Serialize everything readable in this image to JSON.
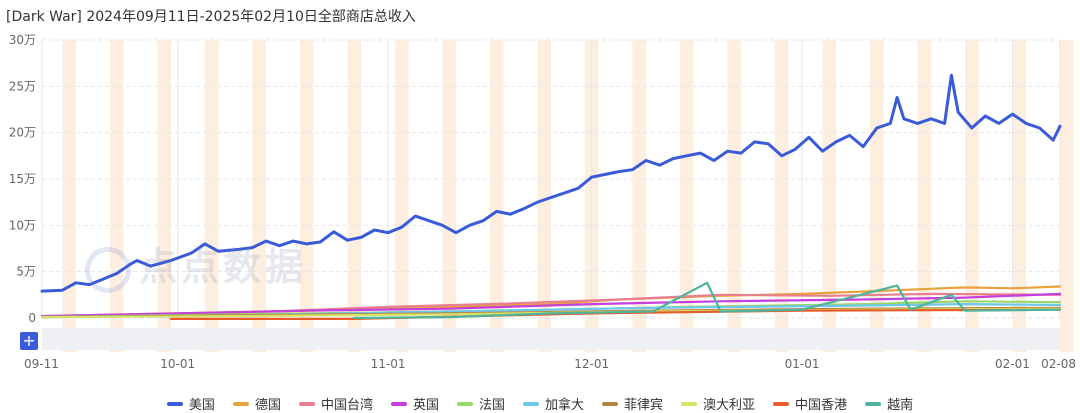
{
  "title": "[Dark War] 2024年09月11日-2025年02月10日全部商店总收入",
  "watermark": "点点数据",
  "zoom_button": "+",
  "colors": {
    "shade": "#fdeee0",
    "grid": "#e6e6e6",
    "slider_bg": "#eef0f4",
    "zoom": "#3b5bdb"
  },
  "chart_data": {
    "type": "line",
    "title": "[Dark War] 2024年09月11日-2025年02月10日全部商店总收入",
    "xlabel": "",
    "ylabel": "",
    "x_start": "2024-09-11",
    "x_end": "2025-02-08",
    "ylim": [
      0,
      300000
    ],
    "y_ticks": [
      0,
      50000,
      100000,
      150000,
      200000,
      250000,
      300000
    ],
    "y_tick_labels": [
      "0",
      "5万",
      "10万",
      "15万",
      "20万",
      "25万",
      "30万"
    ],
    "x_ticks": [
      "2024-09-11",
      "2024-10-01",
      "2024-11-01",
      "2024-12-01",
      "2025-01-01",
      "2025-02-01",
      "2025-02-08"
    ],
    "x_tick_labels": [
      "09-11",
      "10-01",
      "11-01",
      "12-01",
      "01-01",
      "02-01",
      "02-08"
    ],
    "grid": true,
    "legend_position": "bottom",
    "weekend_shading": true,
    "series": [
      {
        "name": "美国",
        "color": "#3a5bd9",
        "points": [
          [
            "2024-09-11",
            29000
          ],
          [
            "2024-09-14",
            30000
          ],
          [
            "2024-09-16",
            38000
          ],
          [
            "2024-09-18",
            36000
          ],
          [
            "2024-09-20",
            42000
          ],
          [
            "2024-09-22",
            48000
          ],
          [
            "2024-09-24",
            58000
          ],
          [
            "2024-09-25",
            62000
          ],
          [
            "2024-09-27",
            56000
          ],
          [
            "2024-09-30",
            62000
          ],
          [
            "2024-10-03",
            70000
          ],
          [
            "2024-10-05",
            80000
          ],
          [
            "2024-10-07",
            72000
          ],
          [
            "2024-10-10",
            74000
          ],
          [
            "2024-10-12",
            76000
          ],
          [
            "2024-10-14",
            83000
          ],
          [
            "2024-10-16",
            78000
          ],
          [
            "2024-10-18",
            83000
          ],
          [
            "2024-10-20",
            80000
          ],
          [
            "2024-10-22",
            82000
          ],
          [
            "2024-10-24",
            93000
          ],
          [
            "2024-10-26",
            84000
          ],
          [
            "2024-10-28",
            87000
          ],
          [
            "2024-10-30",
            95000
          ],
          [
            "2024-11-01",
            92000
          ],
          [
            "2024-11-03",
            98000
          ],
          [
            "2024-11-05",
            110000
          ],
          [
            "2024-11-07",
            105000
          ],
          [
            "2024-11-09",
            100000
          ],
          [
            "2024-11-11",
            92000
          ],
          [
            "2024-11-13",
            100000
          ],
          [
            "2024-11-15",
            105000
          ],
          [
            "2024-11-17",
            115000
          ],
          [
            "2024-11-19",
            112000
          ],
          [
            "2024-11-21",
            118000
          ],
          [
            "2024-11-23",
            125000
          ],
          [
            "2024-11-25",
            130000
          ],
          [
            "2024-11-27",
            135000
          ],
          [
            "2024-11-29",
            140000
          ],
          [
            "2024-12-01",
            152000
          ],
          [
            "2024-12-03",
            155000
          ],
          [
            "2024-12-05",
            158000
          ],
          [
            "2024-12-07",
            160000
          ],
          [
            "2024-12-09",
            170000
          ],
          [
            "2024-12-11",
            165000
          ],
          [
            "2024-12-13",
            172000
          ],
          [
            "2024-12-15",
            175000
          ],
          [
            "2024-12-17",
            178000
          ],
          [
            "2024-12-19",
            170000
          ],
          [
            "2024-12-21",
            180000
          ],
          [
            "2024-12-23",
            178000
          ],
          [
            "2024-12-25",
            190000
          ],
          [
            "2024-12-27",
            188000
          ],
          [
            "2024-12-29",
            175000
          ],
          [
            "2024-12-31",
            182000
          ],
          [
            "2025-01-02",
            195000
          ],
          [
            "2025-01-04",
            180000
          ],
          [
            "2025-01-06",
            190000
          ],
          [
            "2025-01-08",
            197000
          ],
          [
            "2025-01-10",
            185000
          ],
          [
            "2025-01-12",
            205000
          ],
          [
            "2025-01-14",
            210000
          ],
          [
            "2025-01-15",
            238000
          ],
          [
            "2025-01-16",
            215000
          ],
          [
            "2025-01-18",
            210000
          ],
          [
            "2025-01-20",
            215000
          ],
          [
            "2025-01-22",
            210000
          ],
          [
            "2025-01-23",
            262000
          ],
          [
            "2025-01-24",
            222000
          ],
          [
            "2025-01-26",
            205000
          ],
          [
            "2025-01-28",
            218000
          ],
          [
            "2025-01-30",
            210000
          ],
          [
            "2025-02-01",
            220000
          ],
          [
            "2025-02-03",
            210000
          ],
          [
            "2025-02-05",
            205000
          ],
          [
            "2025-02-07",
            192000
          ],
          [
            "2025-02-08",
            207000
          ]
        ]
      },
      {
        "name": "德国",
        "color": "#e8a33d",
        "points": [
          [
            "2024-09-11",
            2000
          ],
          [
            "2024-10-01",
            5000
          ],
          [
            "2024-10-20",
            8000
          ],
          [
            "2024-11-10",
            12000
          ],
          [
            "2024-11-25",
            15000
          ],
          [
            "2024-12-05",
            20000
          ],
          [
            "2024-12-20",
            24000
          ],
          [
            "2025-01-01",
            26000
          ],
          [
            "2025-01-15",
            30000
          ],
          [
            "2025-01-25",
            33000
          ],
          [
            "2025-02-01",
            32000
          ],
          [
            "2025-02-08",
            34000
          ]
        ]
      },
      {
        "name": "中国台湾",
        "color": "#e87f8f",
        "points": [
          [
            "2024-09-11",
            2000
          ],
          [
            "2024-10-01",
            4000
          ],
          [
            "2024-10-15",
            7000
          ],
          [
            "2024-11-01",
            12000
          ],
          [
            "2024-11-20",
            16000
          ],
          [
            "2024-12-05",
            20000
          ],
          [
            "2024-12-20",
            25000
          ],
          [
            "2025-01-05",
            24000
          ],
          [
            "2025-01-20",
            26000
          ],
          [
            "2025-02-08",
            25000
          ]
        ]
      },
      {
        "name": "英国",
        "color": "#c43fdc",
        "points": [
          [
            "2024-09-11",
            2000
          ],
          [
            "2024-10-01",
            5000
          ],
          [
            "2024-10-20",
            8000
          ],
          [
            "2024-11-10",
            10000
          ],
          [
            "2024-12-01",
            15000
          ],
          [
            "2024-12-20",
            18000
          ],
          [
            "2025-01-10",
            20000
          ],
          [
            "2025-01-25",
            22000
          ],
          [
            "2025-02-08",
            26000
          ]
        ]
      },
      {
        "name": "法国",
        "color": "#9bd86a",
        "points": [
          [
            "2024-09-11",
            1000
          ],
          [
            "2024-10-10",
            4000
          ],
          [
            "2024-11-01",
            6000
          ],
          [
            "2024-11-25",
            9000
          ],
          [
            "2024-12-15",
            12000
          ],
          [
            "2025-01-10",
            15000
          ],
          [
            "2025-01-25",
            18000
          ],
          [
            "2025-02-08",
            17000
          ]
        ]
      },
      {
        "name": "加拿大",
        "color": "#6ec6ea",
        "points": [
          [
            "2024-09-11",
            1000
          ],
          [
            "2024-10-10",
            3000
          ],
          [
            "2024-11-10",
            7000
          ],
          [
            "2024-12-10",
            11000
          ],
          [
            "2025-01-05",
            13000
          ],
          [
            "2025-01-25",
            15000
          ],
          [
            "2025-02-08",
            14000
          ]
        ]
      },
      {
        "name": "菲律宾",
        "color": "#b5843f",
        "points": [
          [
            "2024-09-11",
            1000
          ],
          [
            "2024-10-10",
            3000
          ],
          [
            "2024-11-10",
            5000
          ],
          [
            "2024-12-10",
            8000
          ],
          [
            "2025-01-10",
            10000
          ],
          [
            "2025-02-08",
            11000
          ]
        ]
      },
      {
        "name": "澳大利亚",
        "color": "#d6e36a",
        "points": [
          [
            "2024-09-11",
            1000
          ],
          [
            "2024-10-10",
            2000
          ],
          [
            "2024-11-10",
            4000
          ],
          [
            "2024-12-10",
            7000
          ],
          [
            "2025-01-10",
            9000
          ],
          [
            "2025-02-08",
            10000
          ]
        ]
      },
      {
        "name": "中国香港",
        "color": "#e85b2b",
        "points": [
          [
            "2024-09-30",
            -1000
          ],
          [
            "2024-10-15",
            -1000
          ],
          [
            "2024-10-27",
            -1000
          ],
          [
            "2024-11-05",
            500
          ],
          [
            "2024-12-01",
            5000
          ],
          [
            "2025-01-01",
            8000
          ],
          [
            "2025-02-08",
            9000
          ]
        ]
      },
      {
        "name": "越南",
        "color": "#4fb39b",
        "points": [
          [
            "2024-10-27",
            0
          ],
          [
            "2024-11-10",
            1000
          ],
          [
            "2024-11-25",
            5000
          ],
          [
            "2024-12-10",
            7000
          ],
          [
            "2024-12-18",
            38000
          ],
          [
            "2024-12-20",
            7000
          ],
          [
            "2025-01-01",
            9000
          ],
          [
            "2025-01-15",
            35000
          ],
          [
            "2025-01-17",
            9000
          ],
          [
            "2025-01-23",
            25000
          ],
          [
            "2025-01-25",
            8000
          ],
          [
            "2025-02-08",
            9000
          ]
        ]
      }
    ]
  }
}
